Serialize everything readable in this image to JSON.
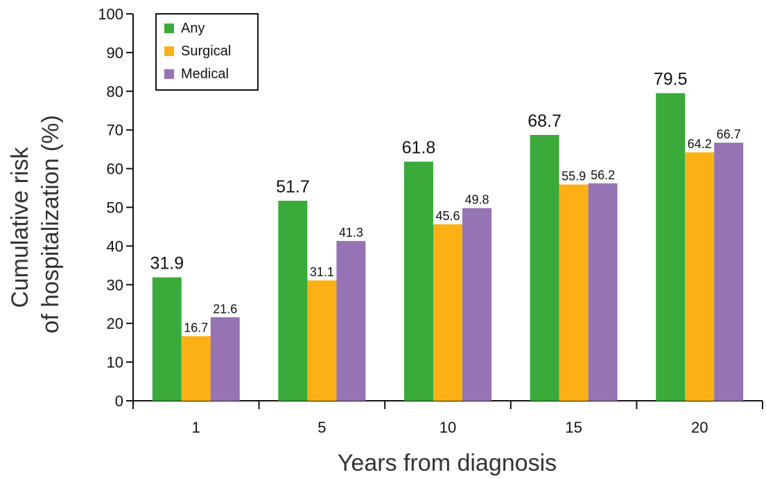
{
  "chart_data": {
    "type": "bar",
    "title": "",
    "xlabel": "Years from diagnosis",
    "ylabel_lines": [
      "Cumulative risk",
      "of hospitalization (%)"
    ],
    "categories": [
      "1",
      "5",
      "10",
      "15",
      "20"
    ],
    "series": [
      {
        "name": "Any",
        "color": "#3aaa3a",
        "values": [
          31.9,
          51.7,
          61.8,
          68.7,
          79.5
        ]
      },
      {
        "name": "Surgical",
        "color": "#fbb116",
        "values": [
          16.7,
          31.1,
          45.6,
          55.9,
          64.2
        ]
      },
      {
        "name": "Medical",
        "color": "#9673b5",
        "values": [
          21.6,
          41.3,
          49.8,
          56.2,
          66.7
        ]
      }
    ],
    "data_labels": [
      [
        "31.9",
        "51.7",
        "61.8",
        "68.7",
        "79.5"
      ],
      [
        "16.7",
        "31.1",
        "45.6",
        "55.9",
        "64.2"
      ],
      [
        "21.6",
        "41.3",
        "49.8",
        "56.2",
        "66.7"
      ]
    ],
    "ylim": [
      0,
      100
    ],
    "yticks": [
      "0",
      "10",
      "20",
      "30",
      "40",
      "50",
      "60",
      "70",
      "80",
      "90",
      "100"
    ],
    "grid": false,
    "legend_position": "top-left"
  }
}
